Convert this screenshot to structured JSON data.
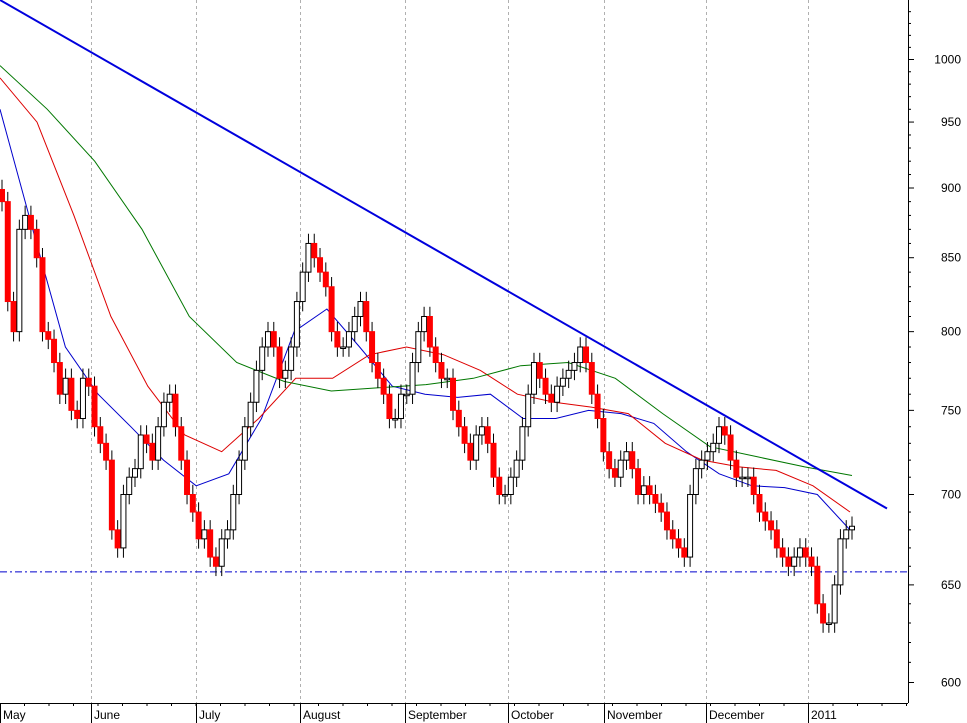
{
  "chart_data": {
    "type": "candlestick",
    "title": "",
    "xlabel": "",
    "ylabel": "",
    "y_scale": "log",
    "ylim": [
      590,
      1050
    ],
    "y_ticks": [
      600,
      650,
      700,
      750,
      800,
      850,
      900,
      950,
      1000
    ],
    "x_ticks": [
      "May",
      "June",
      "July",
      "August",
      "September",
      "October",
      "November",
      "December",
      "2011"
    ],
    "grid": "vertical dashed at month starts",
    "colors": {
      "up_candle": "#ffffff",
      "down_candle": "#ff0000",
      "candle_outline": "#000000",
      "ma_fast": "#0000cc",
      "ma_mid": "#dd0000",
      "ma_slow": "#007700",
      "trendline": "#0000dd",
      "support_line": "#0000cc",
      "grid": "#b0b0b0"
    },
    "closes": [
      890,
      820,
      800,
      870,
      880,
      870,
      850,
      800,
      795,
      780,
      760,
      770,
      750,
      745,
      770,
      765,
      740,
      730,
      720,
      680,
      670,
      700,
      710,
      715,
      735,
      730,
      720,
      740,
      755,
      760,
      740,
      720,
      700,
      690,
      675,
      680,
      665,
      660,
      675,
      680,
      700,
      720,
      740,
      755,
      775,
      790,
      800,
      790,
      770,
      775,
      790,
      820,
      840,
      860,
      850,
      840,
      830,
      800,
      790,
      790,
      800,
      810,
      820,
      800,
      780,
      770,
      760,
      745,
      745,
      760,
      760,
      780,
      800,
      810,
      790,
      780,
      770,
      770,
      750,
      740,
      730,
      720,
      735,
      740,
      730,
      710,
      700,
      700,
      710,
      720,
      740,
      760,
      780,
      770,
      760,
      755,
      765,
      770,
      775,
      780,
      790,
      780,
      760,
      745,
      725,
      715,
      710,
      720,
      725,
      715,
      700,
      705,
      700,
      695,
      690,
      680,
      675,
      670,
      665,
      700,
      715,
      720,
      725,
      730,
      740,
      735,
      720,
      710,
      710,
      710,
      700,
      690,
      685,
      680,
      670,
      665,
      660,
      665,
      670,
      665,
      660,
      640,
      630,
      630,
      650,
      675,
      680,
      682
    ],
    "support_level": 657,
    "trendline": {
      "start_value": 1050,
      "end_value": 692
    },
    "moving_averages": [
      {
        "color": "blue",
        "values": [
          960,
          870,
          790,
          760,
          740,
          720,
          705,
          712,
          745,
          800,
          815,
          790,
          765,
          760,
          758,
          760,
          745,
          745,
          750,
          748,
          742,
          725,
          712,
          705,
          704,
          700,
          680
        ]
      },
      {
        "color": "red",
        "values": [
          985,
          950,
          880,
          810,
          765,
          735,
          725,
          745,
          770,
          770,
          785,
          790,
          785,
          775,
          760,
          755,
          752,
          748,
          730,
          720,
          716,
          714,
          705,
          690
        ]
      },
      {
        "color": "green",
        "values": [
          995,
          960,
          920,
          870,
          810,
          780,
          768,
          762,
          764,
          766,
          770,
          778,
          780,
          770,
          748,
          728,
          722,
          716,
          711
        ]
      }
    ]
  }
}
